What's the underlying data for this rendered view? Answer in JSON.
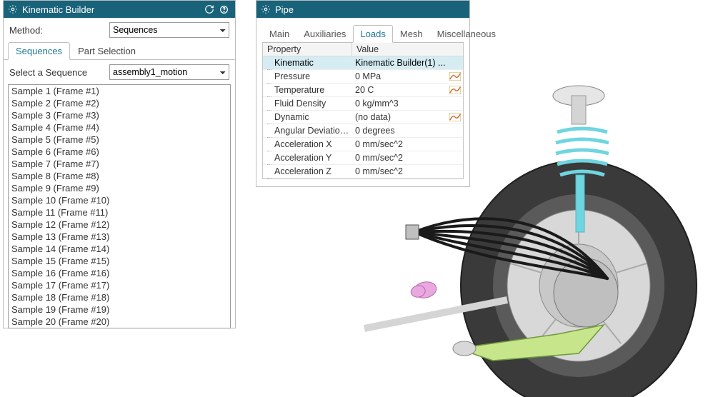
{
  "colors": {
    "titlebar_bg": "#19637a",
    "titlebar_fg": "#ffffff",
    "panel_border": "#bcbcbc",
    "tab_active_fg": "#1f7a95",
    "tab_border": "#c0c0c0",
    "grid_border": "#c8c8c8",
    "row_sel_bg": "#d6ecf3",
    "tire": "#404040",
    "rim": "#d8d8d8",
    "spring_shock": "#6fd5e0",
    "pipe_black": "#1a1a1a",
    "arm_green": "#c7e68b",
    "joint_pink": "#e9a8e0",
    "shaft_gray": "#e0e0e0"
  },
  "kb": {
    "title": "Kinematic Builder",
    "method_label": "Method:",
    "method_value": "Sequences",
    "tabs": [
      "Sequences",
      "Part Selection"
    ],
    "active_tab": 0,
    "seq_label": "Select a Sequence",
    "seq_value": "assembly1_motion",
    "list": [
      "Sample 1 (Frame #1)",
      "Sample 2 (Frame #2)",
      "Sample 3 (Frame #3)",
      "Sample 4 (Frame #4)",
      "Sample 5 (Frame #5)",
      "Sample 6 (Frame #6)",
      "Sample 7 (Frame #7)",
      "Sample 8 (Frame #8)",
      "Sample 9 (Frame #9)",
      "Sample 10 (Frame #10)",
      "Sample 11 (Frame #11)",
      "Sample 12 (Frame #12)",
      "Sample 13 (Frame #13)",
      "Sample 14 (Frame #14)",
      "Sample 15 (Frame #15)",
      "Sample 16 (Frame #16)",
      "Sample 17 (Frame #17)",
      "Sample 18 (Frame #18)",
      "Sample 19 (Frame #19)",
      "Sample 20 (Frame #20)"
    ]
  },
  "pipe": {
    "title": "Pipe",
    "tabs": [
      "Main",
      "Auxiliaries",
      "Loads",
      "Mesh",
      "Miscellaneous"
    ],
    "active_tab": 2,
    "grid_headers": [
      "Property",
      "Value"
    ],
    "rows": [
      {
        "name": "Kinematic",
        "value": "Kinematic Builder(1) ...",
        "selected": true,
        "icon": false
      },
      {
        "name": "Pressure",
        "value": "0 MPa",
        "selected": false,
        "icon": true
      },
      {
        "name": "Temperature",
        "value": "20 C",
        "selected": false,
        "icon": true
      },
      {
        "name": "Fluid Density",
        "value": "0 kg/mm^3",
        "selected": false,
        "icon": false
      },
      {
        "name": "Dynamic",
        "value": "(no data)",
        "selected": false,
        "icon": true
      },
      {
        "name": "Angular Deviation ...",
        "value": "0 degrees",
        "selected": false,
        "icon": false
      },
      {
        "name": "Acceleration X",
        "value": "0 mm/sec^2",
        "selected": false,
        "icon": false
      },
      {
        "name": "Acceleration Y",
        "value": "0 mm/sec^2",
        "selected": false,
        "icon": false
      },
      {
        "name": "Acceleration Z",
        "value": "0 mm/sec^2",
        "selected": false,
        "icon": false
      }
    ]
  }
}
